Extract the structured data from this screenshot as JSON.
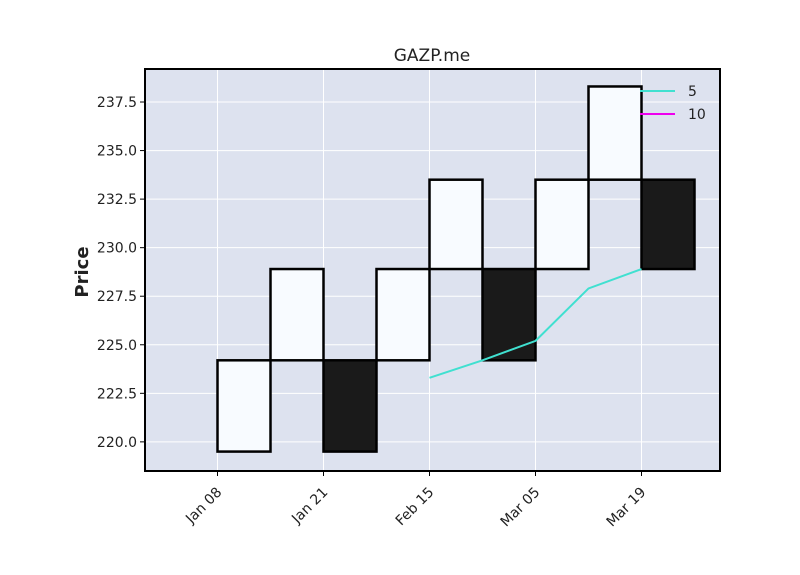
{
  "chart_data": {
    "type": "renko",
    "title": "GAZP.me",
    "xlabel": "",
    "ylabel": "Price",
    "ylim": [
      218.5,
      239.2
    ],
    "y_ticks": [
      "220.0",
      "222.5",
      "225.0",
      "227.5",
      "230.0",
      "232.5",
      "235.0",
      "237.5"
    ],
    "y_tick_values": [
      220.0,
      222.5,
      225.0,
      227.5,
      230.0,
      232.5,
      235.0,
      237.5
    ],
    "x_ticks": [
      "Jan 08",
      "Jan 21",
      "Feb 15",
      "Mar 05",
      "Mar 19"
    ],
    "x_tick_bricks": [
      0,
      2,
      4,
      6,
      8
    ],
    "grid": true,
    "legend_position": "top-right",
    "bricks": [
      {
        "low": 219.5,
        "high": 224.2,
        "direction": "up"
      },
      {
        "low": 224.2,
        "high": 228.9,
        "direction": "up"
      },
      {
        "low": 219.5,
        "high": 224.2,
        "direction": "down"
      },
      {
        "low": 224.2,
        "high": 228.9,
        "direction": "up"
      },
      {
        "low": 228.9,
        "high": 233.5,
        "direction": "up"
      },
      {
        "low": 224.2,
        "high": 228.9,
        "direction": "down"
      },
      {
        "low": 228.9,
        "high": 233.5,
        "direction": "up"
      },
      {
        "low": 233.5,
        "high": 238.3,
        "direction": "up"
      },
      {
        "low": 228.9,
        "high": 233.5,
        "direction": "down"
      }
    ],
    "series": [
      {
        "name": "5",
        "color": "#40e0d0",
        "points": [
          [
            4,
            223.3
          ],
          [
            5,
            224.2
          ],
          [
            6,
            225.2
          ],
          [
            7,
            227.9
          ],
          [
            8,
            228.9
          ]
        ]
      },
      {
        "name": "10",
        "color": "#ee00ee",
        "points": []
      }
    ],
    "colors": {
      "up": "#f8fbff",
      "down": "#1a1a1a",
      "edge": "#000000",
      "background": "#dde2ef",
      "grid": "#ffffff"
    }
  }
}
